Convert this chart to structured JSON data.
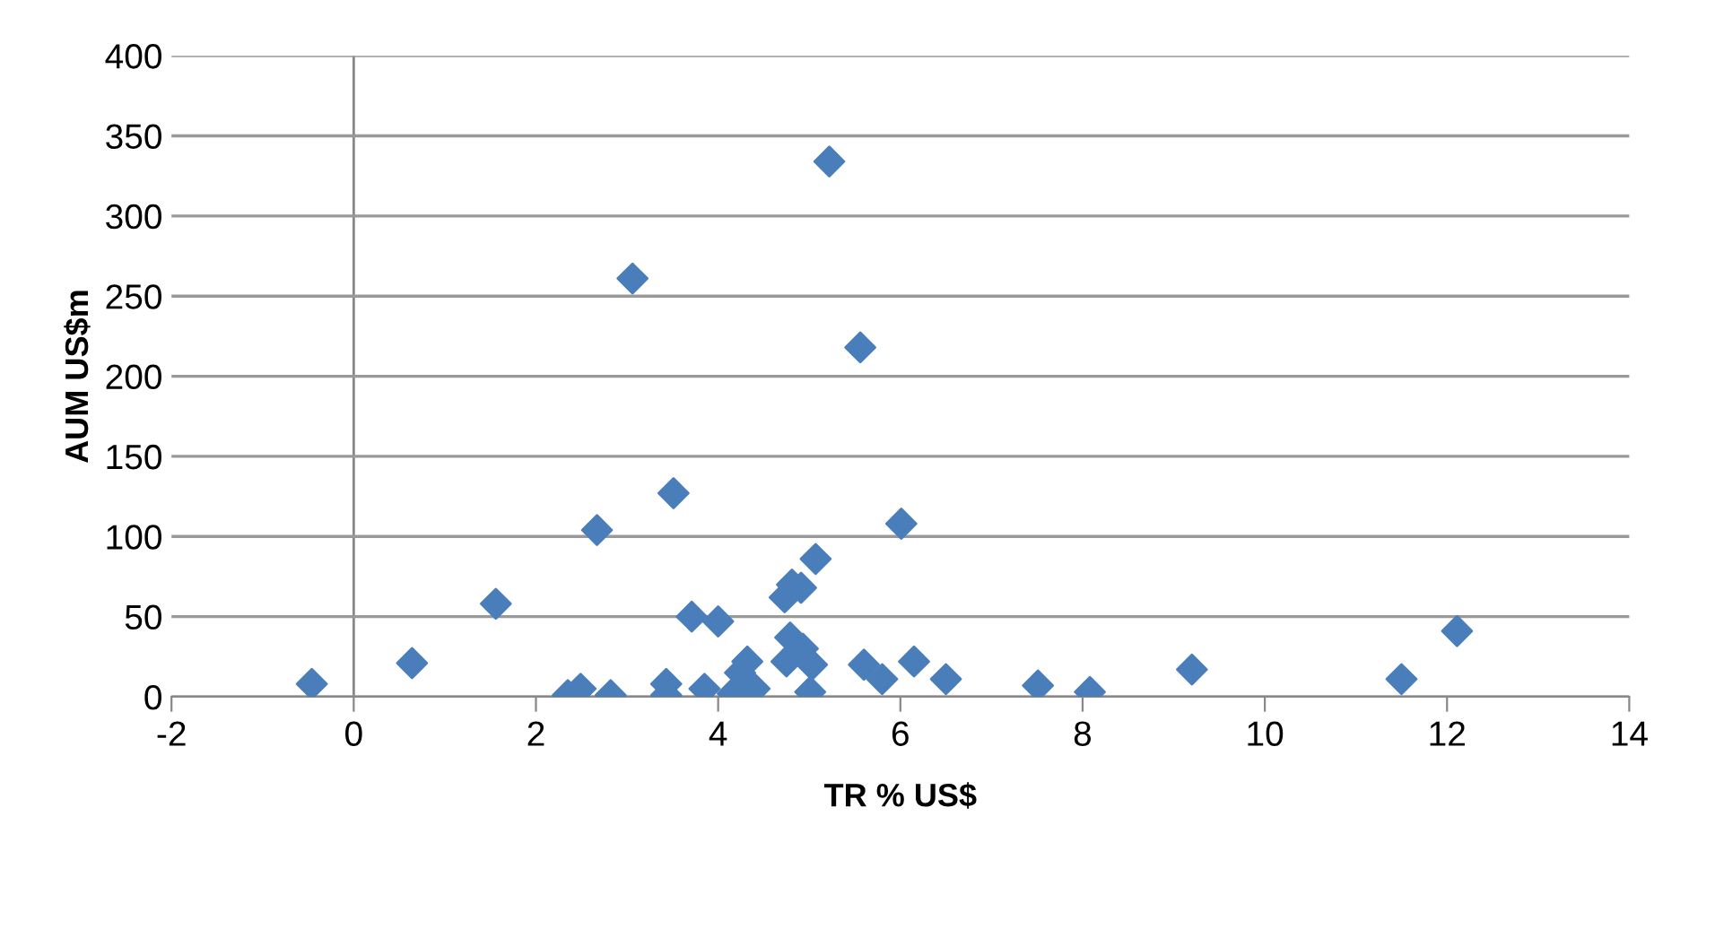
{
  "chart_data": {
    "type": "scatter",
    "xlabel": "TR % US$",
    "ylabel": "AUM US$m",
    "marker": "diamond",
    "grid": "y",
    "xlim": [
      -2,
      14
    ],
    "xticks": [
      -2,
      0,
      2,
      4,
      6,
      8,
      10,
      12,
      14
    ],
    "ylim": [
      0,
      400
    ],
    "yticks": [
      0,
      50,
      100,
      150,
      200,
      250,
      300,
      350,
      400
    ],
    "series": [
      {
        "color": "#4a7ebb",
        "x": [
          -0.46,
          0.64,
          1.56,
          2.67,
          3.06,
          3.51,
          3.71,
          4.0,
          2.35,
          2.49,
          2.82,
          3.43,
          3.43,
          3.85,
          4.16,
          4.24,
          4.32,
          4.4,
          4.73,
          4.81,
          4.91,
          5.07,
          5.22,
          5.56,
          6.01,
          4.79,
          4.93,
          4.75,
          5.03,
          5.01,
          5.6,
          5.8,
          6.15,
          6.5,
          7.51,
          8.08,
          9.2,
          11.5,
          12.11
        ],
        "values": [
          8,
          21,
          58,
          104,
          261,
          127,
          50,
          47,
          1,
          5,
          1,
          8,
          1,
          5,
          2,
          15,
          22,
          5,
          62,
          70,
          68,
          86,
          334,
          218,
          108,
          37,
          30,
          22,
          20,
          3,
          20,
          11,
          22,
          11,
          7,
          3,
          17,
          11,
          41
        ]
      }
    ]
  }
}
